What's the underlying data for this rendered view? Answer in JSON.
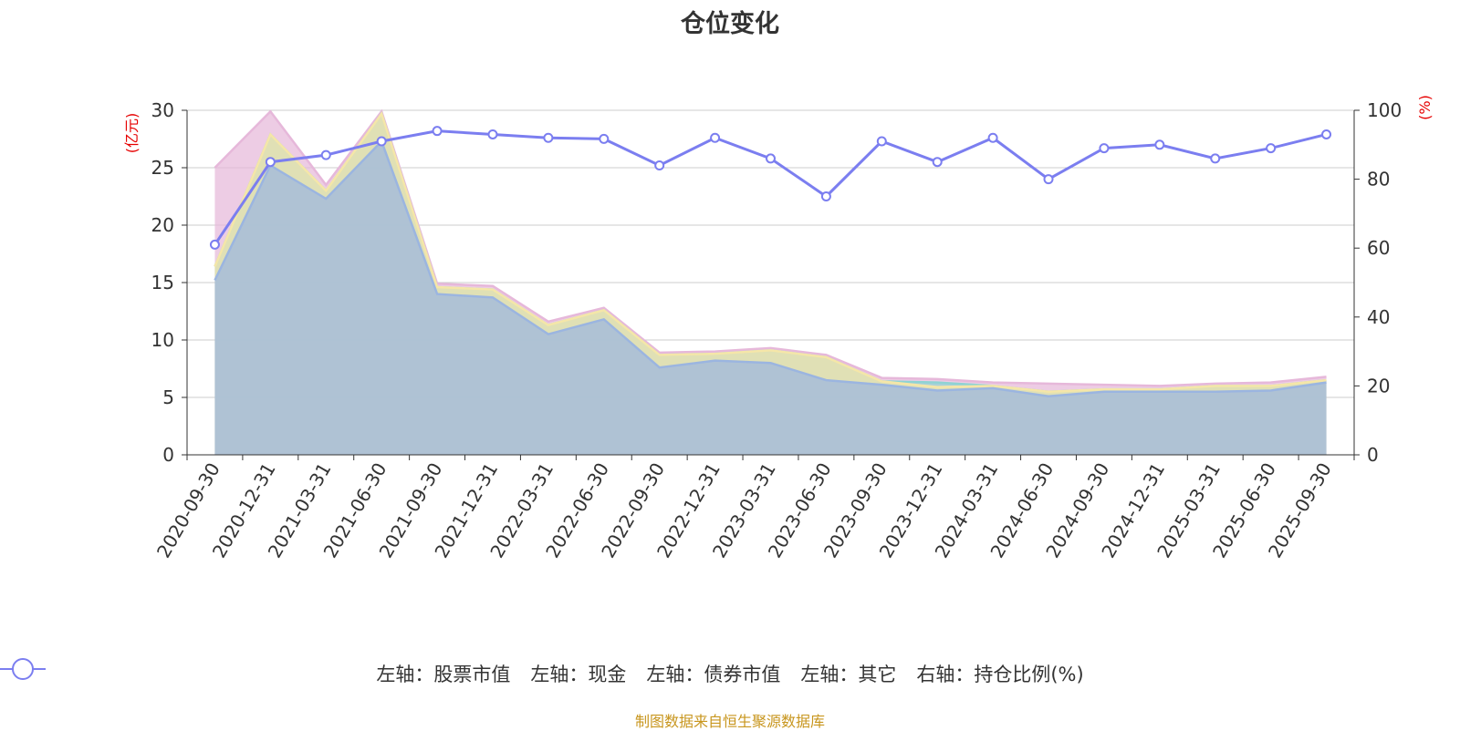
{
  "chart_data": {
    "type": "area",
    "title": "仓位变化",
    "y_left_unit": "(亿元)",
    "y_right_unit": "(%)",
    "ylim_left": [
      0,
      30
    ],
    "ylim_right": [
      0,
      100
    ],
    "y_left_ticks": [
      "0",
      "5",
      "10",
      "15",
      "20",
      "25",
      "30"
    ],
    "y_right_ticks": [
      "0",
      "20",
      "40",
      "60",
      "80",
      "100"
    ],
    "grid": true,
    "legend_position": "bottom",
    "categories": [
      "2020-09-30",
      "2020-12-31",
      "2021-03-31",
      "2021-06-30",
      "2021-09-30",
      "2021-12-31",
      "2022-03-31",
      "2022-06-30",
      "2022-09-30",
      "2022-12-31",
      "2023-03-31",
      "2023-06-30",
      "2023-09-30",
      "2023-12-31",
      "2024-03-31",
      "2024-06-30",
      "2024-09-30",
      "2024-12-31",
      "2025-03-31",
      "2025-06-30",
      "2025-09-30"
    ],
    "series": [
      {
        "name": "左轴：股票市值",
        "axis": "left",
        "kind": "stacked-area",
        "color": "#9bb5e0",
        "values": [
          15.2,
          25.2,
          22.3,
          27.3,
          14.0,
          13.7,
          10.5,
          11.8,
          7.6,
          8.2,
          8.0,
          6.5,
          6.1,
          5.6,
          5.8,
          5.1,
          5.5,
          5.5,
          5.5,
          5.6,
          6.3
        ]
      },
      {
        "name": "左轴：现金",
        "axis": "left",
        "kind": "stacked-area",
        "color": "#f5e6a8",
        "values": [
          1.2,
          2.7,
          0.7,
          2.4,
          0.6,
          0.7,
          0.8,
          0.8,
          1.1,
          0.6,
          1.1,
          2.0,
          0.3,
          0.3,
          0.2,
          0.4,
          0.2,
          0.2,
          0.5,
          0.4,
          0.2
        ]
      },
      {
        "name": "左轴：债券市值",
        "axis": "left",
        "kind": "stacked-area",
        "color": "#8fd3d3",
        "values": [
          0,
          0,
          0,
          0,
          0,
          0,
          0,
          0,
          0,
          0,
          0,
          0,
          0,
          0.4,
          0,
          0,
          0,
          0,
          0,
          0,
          0
        ]
      },
      {
        "name": "左轴：其它",
        "axis": "left",
        "kind": "stacked-area",
        "color": "#e6b8da",
        "values": [
          8.6,
          2.0,
          0.5,
          0.2,
          0.3,
          0.3,
          0.3,
          0.2,
          0.2,
          0.2,
          0.2,
          0.2,
          0.3,
          0.3,
          0.3,
          0.7,
          0.4,
          0.3,
          0.2,
          0.3,
          0.3
        ]
      },
      {
        "name": "右轴：持仓比例(%)",
        "axis": "right",
        "kind": "line",
        "color": "#7b7ef0",
        "values": [
          61,
          85,
          87,
          91,
          94,
          93,
          92,
          91.7,
          84,
          92,
          86,
          75,
          91,
          85,
          92,
          80,
          89,
          90,
          86,
          89,
          93
        ]
      }
    ]
  },
  "source": "制图数据来自恒生聚源数据库"
}
